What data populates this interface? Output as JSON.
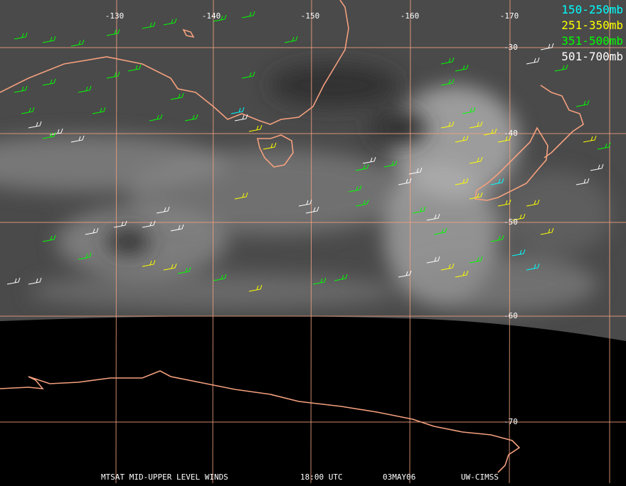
{
  "map": {
    "longitude_labels": [
      "-130",
      "-140",
      "-150",
      "-160",
      "-170"
    ],
    "latitude_labels": [
      "-30",
      "-40",
      "-50",
      "-60",
      "-70"
    ],
    "legend": [
      {
        "label": "150-250mb",
        "color": "#00ffff"
      },
      {
        "label": "251-350mb",
        "color": "#ffff00"
      },
      {
        "label": "351-500mb",
        "color": "#00ff00"
      },
      {
        "label": "501-700mb",
        "color": "#ffffff"
      }
    ],
    "footer": {
      "product": "MTSAT MID-UPPER LEVEL WINDS",
      "time": "18:00 UTC",
      "date": "03MAY06",
      "source": "UW-CIMSS"
    }
  }
}
